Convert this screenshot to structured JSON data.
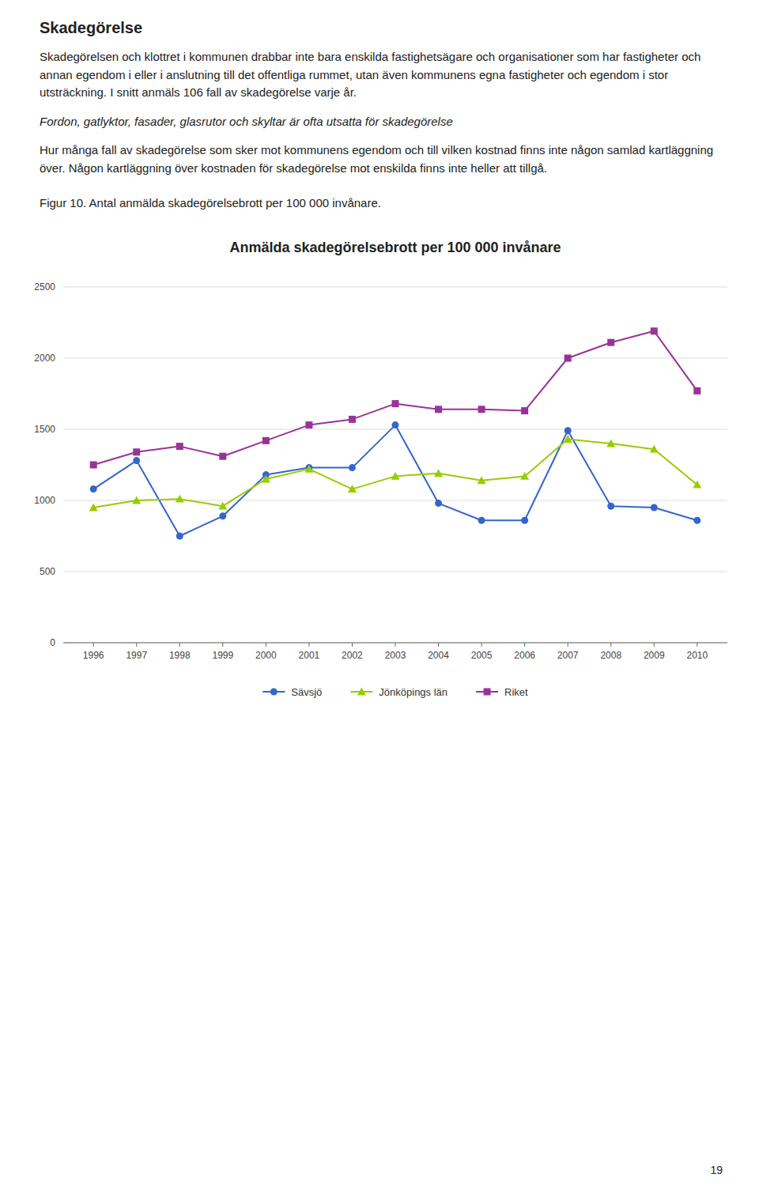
{
  "page": {
    "heading": "Skadegörelse",
    "paragraphs": [
      "Skadegörelsen och klottret i kommunen drabbar inte bara enskilda fastighetsägare och organisationer som har fastigheter och annan egendom i eller i anslutning till det offentliga rummet, utan även kommunens egna fastigheter och egendom i stor utsträckning. I snitt anmäls 106 fall av skadegörelse varje år.",
      "Fordon, gatlyktor, fasader, glasrutor och skyltar är ofta utsatta för skadegörelse",
      "Hur många fall av skadegörelse som sker mot kommunens egendom och till vilken kostnad finns inte någon samlad kartläggning över. Någon kartläggning över kostnaden för skadegörelse mot enskilda finns inte heller att tillgå."
    ],
    "caption": "Figur 10. Antal anmälda skadegörelsebrott per 100 000 invånare.",
    "page_number": "19"
  },
  "chart_data": {
    "type": "line",
    "title": "Anmälda skadegörelsebrott per 100 000 invånare",
    "x": [
      1996,
      1997,
      1998,
      1999,
      2000,
      2001,
      2002,
      2003,
      2004,
      2005,
      2006,
      2007,
      2008,
      2009,
      2010
    ],
    "xlim": [
      1995.3,
      2010.7
    ],
    "xticks": [
      1996,
      1997,
      1998,
      1999,
      2000,
      2001,
      2002,
      2003,
      2004,
      2005,
      2006,
      2007,
      2008,
      2009,
      2010
    ],
    "ylim": [
      0,
      2500
    ],
    "yticks": [
      0,
      500,
      1000,
      1500,
      2000,
      2500
    ],
    "grid": true,
    "legend": "bottom",
    "series": [
      {
        "name": "Sävsjö",
        "color": "#3366CC",
        "marker": "circle",
        "values": [
          1080,
          1280,
          750,
          890,
          1180,
          1230,
          1230,
          1530,
          980,
          860,
          860,
          1490,
          960,
          950,
          860
        ]
      },
      {
        "name": "Jönköpings län",
        "color": "#99CC00",
        "marker": "triangle",
        "values": [
          950,
          1000,
          1010,
          960,
          1150,
          1220,
          1080,
          1170,
          1190,
          1140,
          1170,
          1430,
          1400,
          1360,
          1110
        ]
      },
      {
        "name": "Riket",
        "color": "#993399",
        "marker": "square",
        "values": [
          1250,
          1340,
          1380,
          1310,
          1420,
          1530,
          1570,
          1680,
          1640,
          1640,
          1630,
          2000,
          2110,
          2190,
          1770
        ]
      }
    ]
  }
}
